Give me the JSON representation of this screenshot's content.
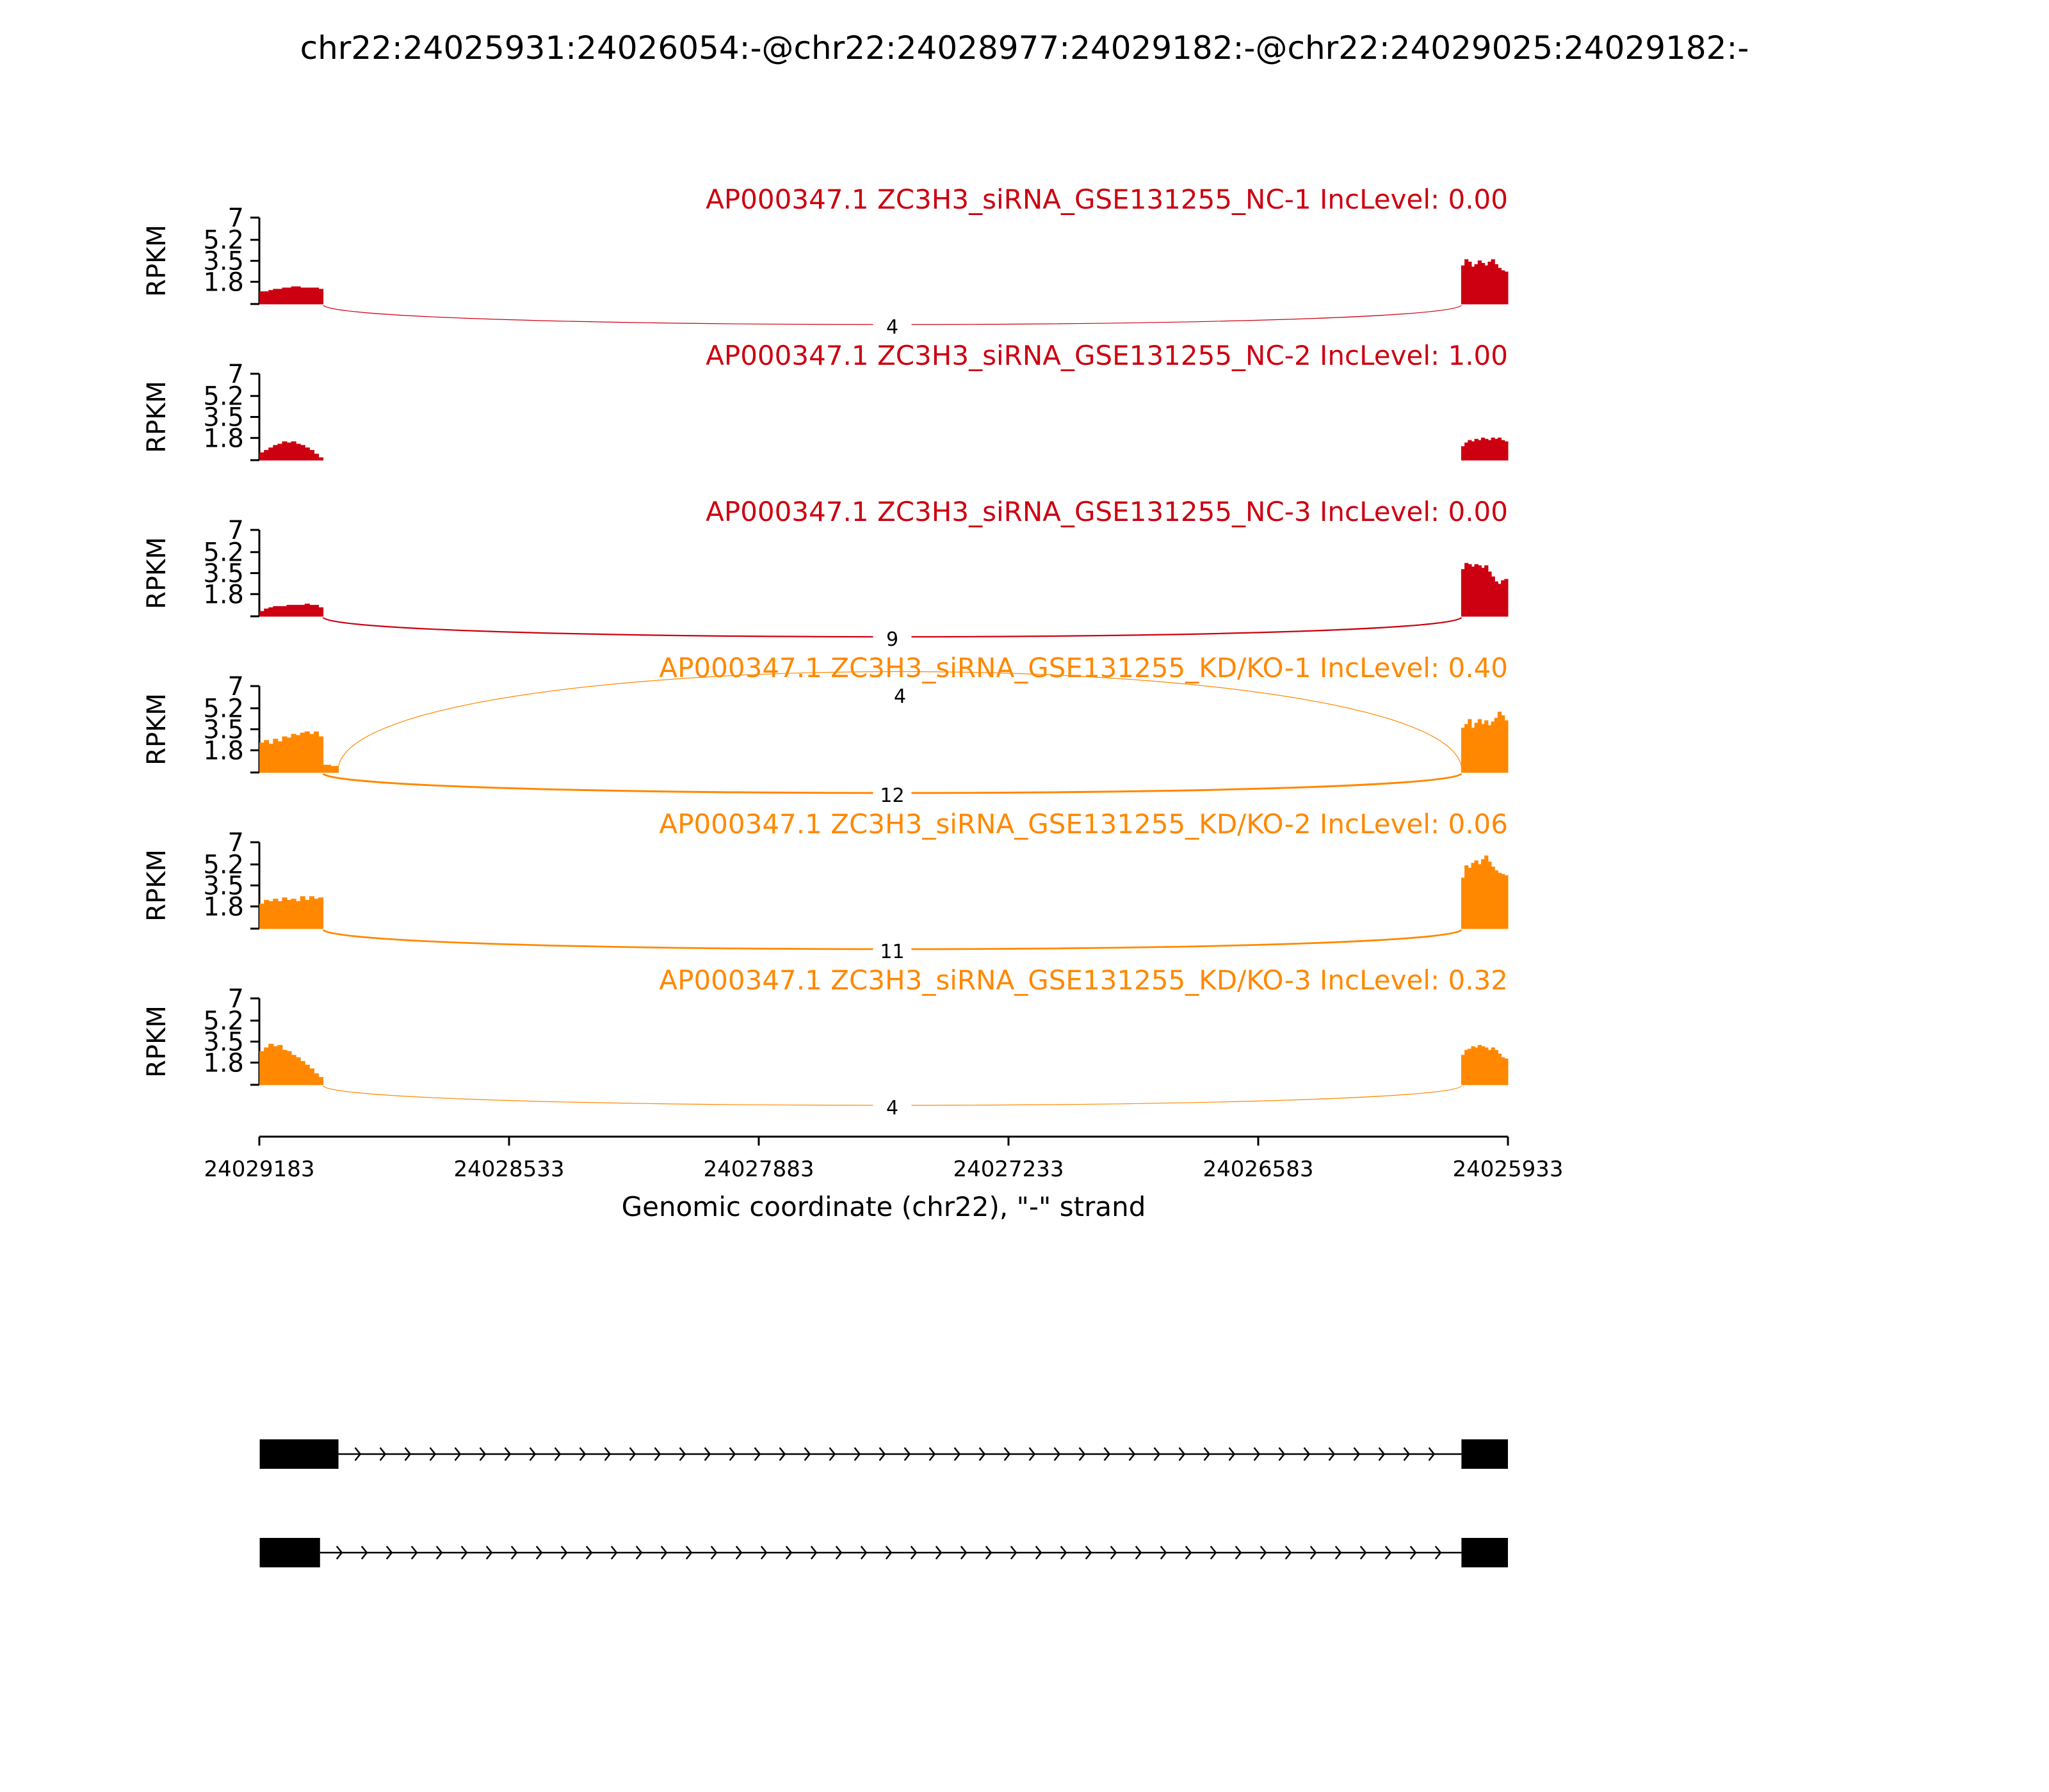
{
  "figure": {
    "title": "chr22:24025931:24026054:-@chr22:24028977:24029182:-@chr22:24029025:24029182:-",
    "colors": {
      "NC": "#cc0011",
      "KD": "#ff8800",
      "axis": "#000000",
      "structure": "#000000"
    }
  },
  "chart_data": {
    "type": "area",
    "subtype": "sashimi",
    "title": "chr22:24025931:24026054:-@chr22:24028977:24029182:-@chr22:24029025:24029182:-",
    "xlabel": "Genomic coordinate (chr22), \"-\" strand",
    "ylabel": "RPKM",
    "x_axis": {
      "reversed": true,
      "range": [
        24029183,
        24025933
      ],
      "ticks": [
        24029183,
        24028533,
        24027883,
        24027233,
        24026583,
        24025933
      ],
      "tick_labels": [
        "24029183",
        "24028533",
        "24027883",
        "24027233",
        "24026583",
        "24025933"
      ]
    },
    "y_axis": {
      "range": [
        0,
        7
      ],
      "ticks": [
        1.8,
        3.5,
        5.2,
        7
      ],
      "tick_labels": [
        "1.8",
        "3.5",
        "5.2",
        "7"
      ]
    },
    "exons": [
      {
        "name": "upstream",
        "start": 24029182,
        "end": 24028977
      },
      {
        "name": "downstream",
        "start": 24026054,
        "end": 24025933
      }
    ],
    "series": [
      {
        "name": "AP000347.1 ZC3H3_siRNA_GSE131255_NC-1 IncLevel: 0.00",
        "group": "NC",
        "coverage": [
          {
            "start": 24029182,
            "end": 24029017,
            "values": [
              1.0,
              1.0,
              1.1,
              1.2,
              1.2,
              1.3,
              1.3,
              1.4,
              1.4,
              1.3,
              1.3,
              1.3,
              1.3,
              1.2
            ]
          },
          {
            "start": 24026054,
            "end": 24025933,
            "values": [
              3.1,
              3.6,
              3.4,
              3.0,
              3.2,
              3.5,
              3.3,
              3.1,
              3.4,
              3.6,
              3.2,
              2.9,
              2.7,
              2.6
            ]
          }
        ],
        "junctions": [
          {
            "from": 24029017,
            "to": 24026054,
            "count": 4,
            "label": "4",
            "side": "below"
          }
        ]
      },
      {
        "name": "AP000347.1 ZC3H3_siRNA_GSE131255_NC-2 IncLevel: 1.00",
        "group": "NC",
        "coverage": [
          {
            "start": 24029182,
            "end": 24029017,
            "values": [
              0.6,
              0.8,
              1.0,
              1.2,
              1.3,
              1.5,
              1.4,
              1.5,
              1.3,
              1.2,
              1.0,
              0.8,
              0.5,
              0.2
            ]
          },
          {
            "start": 24026054,
            "end": 24025933,
            "values": [
              1.1,
              1.4,
              1.6,
              1.5,
              1.7,
              1.6,
              1.8,
              1.7,
              1.6,
              1.8,
              1.7,
              1.8,
              1.6,
              1.5
            ]
          }
        ],
        "junctions": []
      },
      {
        "name": "AP000347.1 ZC3H3_siRNA_GSE131255_NC-3 IncLevel: 0.00",
        "group": "NC",
        "coverage": [
          {
            "start": 24029182,
            "end": 24029017,
            "values": [
              0.4,
              0.6,
              0.7,
              0.8,
              0.8,
              0.8,
              0.9,
              0.9,
              0.9,
              0.9,
              1.0,
              0.9,
              0.9,
              0.7
            ]
          },
          {
            "start": 24026054,
            "end": 24025933,
            "values": [
              3.8,
              4.3,
              4.2,
              4.0,
              4.2,
              4.1,
              3.9,
              4.1,
              3.6,
              3.2,
              2.8,
              2.6,
              2.9,
              3.0
            ]
          }
        ],
        "junctions": [
          {
            "from": 24029017,
            "to": 24026054,
            "count": 9,
            "label": "9",
            "side": "below"
          }
        ]
      },
      {
        "name": "AP000347.1 ZC3H3_siRNA_GSE131255_KD/KO-1 IncLevel: 0.40",
        "group": "KD",
        "coverage": [
          {
            "start": 24029182,
            "end": 24029017,
            "values": [
              2.4,
              2.6,
              2.3,
              2.7,
              2.5,
              2.9,
              2.8,
              3.1,
              3.0,
              3.2,
              3.3,
              3.1,
              3.3,
              2.9
            ]
          },
          {
            "start": 24029017,
            "end": 24028977,
            "values": [
              0.6,
              0.6,
              0.5,
              0.5
            ]
          },
          {
            "start": 24026054,
            "end": 24025933,
            "values": [
              3.6,
              3.9,
              4.3,
              3.6,
              4.0,
              4.3,
              3.9,
              4.2,
              3.8,
              4.1,
              4.4,
              4.9,
              4.6,
              4.2
            ]
          }
        ],
        "junctions": [
          {
            "from": 24028977,
            "to": 24026054,
            "count": 4,
            "label": "4",
            "side": "above"
          },
          {
            "from": 24029017,
            "to": 24026054,
            "count": 12,
            "label": "12",
            "side": "below"
          }
        ]
      },
      {
        "name": "AP000347.1 ZC3H3_siRNA_GSE131255_KD/KO-2 IncLevel: 0.06",
        "group": "KD",
        "coverage": [
          {
            "start": 24029182,
            "end": 24029017,
            "values": [
              2.0,
              2.3,
              2.2,
              2.4,
              2.2,
              2.5,
              2.3,
              2.4,
              2.2,
              2.6,
              2.3,
              2.6,
              2.4,
              2.5
            ]
          },
          {
            "start": 24026054,
            "end": 24025933,
            "values": [
              4.1,
              5.1,
              4.9,
              5.3,
              5.5,
              5.2,
              5.6,
              5.9,
              5.4,
              5.0,
              4.7,
              4.5,
              4.4,
              4.3
            ]
          }
        ],
        "junctions": [
          {
            "from": 24029017,
            "to": 24026054,
            "count": 11,
            "label": "11",
            "side": "below"
          }
        ]
      },
      {
        "name": "AP000347.1 ZC3H3_siRNA_GSE131255_KD/KO-3 IncLevel: 0.32",
        "group": "KD",
        "coverage": [
          {
            "start": 24029182,
            "end": 24029017,
            "values": [
              2.7,
              3.0,
              3.3,
              3.1,
              3.2,
              2.8,
              2.7,
              2.4,
              2.2,
              1.9,
              1.6,
              1.3,
              0.9,
              0.6
            ]
          },
          {
            "start": 24026054,
            "end": 24025933,
            "values": [
              2.4,
              2.8,
              2.9,
              3.1,
              3.0,
              3.2,
              3.1,
              3.0,
              2.8,
              3.0,
              2.8,
              2.5,
              2.2,
              2.1
            ]
          }
        ],
        "junctions": [
          {
            "from": 24029017,
            "to": 24026054,
            "count": 4,
            "label": "4",
            "side": "below"
          }
        ]
      }
    ],
    "isoforms": [
      {
        "exons": [
          {
            "start": 24029182,
            "end": 24028977
          },
          {
            "start": 24026054,
            "end": 24025933
          }
        ]
      },
      {
        "exons": [
          {
            "start": 24029182,
            "end": 24029025
          },
          {
            "start": 24026054,
            "end": 24025933
          }
        ]
      }
    ]
  }
}
